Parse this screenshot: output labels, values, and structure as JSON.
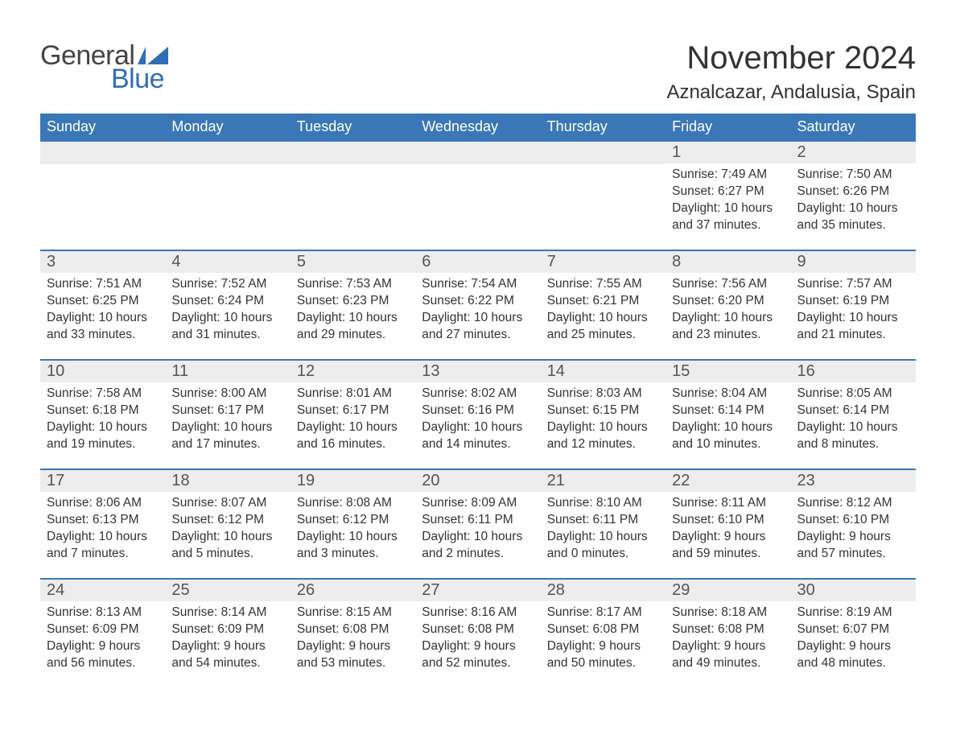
{
  "logo": {
    "general": "General",
    "blue": "Blue"
  },
  "title": "November 2024",
  "location": "Aznalcazar, Andalusia, Spain",
  "colors": {
    "header_bg": "#3a77b7",
    "header_text": "#ffffff",
    "row_divider": "#3a77b7",
    "daynum_bg": "#ededed",
    "daynum_text": "#555555",
    "body_text": "#333333",
    "logo_gray": "#444444",
    "logo_blue": "#2f6eb5",
    "page_bg": "#ffffff"
  },
  "weekdays": [
    "Sunday",
    "Monday",
    "Tuesday",
    "Wednesday",
    "Thursday",
    "Friday",
    "Saturday"
  ],
  "weeks": [
    [
      null,
      null,
      null,
      null,
      null,
      {
        "n": "1",
        "sunrise": "Sunrise: 7:49 AM",
        "sunset": "Sunset: 6:27 PM",
        "d1": "Daylight: 10 hours",
        "d2": "and 37 minutes."
      },
      {
        "n": "2",
        "sunrise": "Sunrise: 7:50 AM",
        "sunset": "Sunset: 6:26 PM",
        "d1": "Daylight: 10 hours",
        "d2": "and 35 minutes."
      }
    ],
    [
      {
        "n": "3",
        "sunrise": "Sunrise: 7:51 AM",
        "sunset": "Sunset: 6:25 PM",
        "d1": "Daylight: 10 hours",
        "d2": "and 33 minutes."
      },
      {
        "n": "4",
        "sunrise": "Sunrise: 7:52 AM",
        "sunset": "Sunset: 6:24 PM",
        "d1": "Daylight: 10 hours",
        "d2": "and 31 minutes."
      },
      {
        "n": "5",
        "sunrise": "Sunrise: 7:53 AM",
        "sunset": "Sunset: 6:23 PM",
        "d1": "Daylight: 10 hours",
        "d2": "and 29 minutes."
      },
      {
        "n": "6",
        "sunrise": "Sunrise: 7:54 AM",
        "sunset": "Sunset: 6:22 PM",
        "d1": "Daylight: 10 hours",
        "d2": "and 27 minutes."
      },
      {
        "n": "7",
        "sunrise": "Sunrise: 7:55 AM",
        "sunset": "Sunset: 6:21 PM",
        "d1": "Daylight: 10 hours",
        "d2": "and 25 minutes."
      },
      {
        "n": "8",
        "sunrise": "Sunrise: 7:56 AM",
        "sunset": "Sunset: 6:20 PM",
        "d1": "Daylight: 10 hours",
        "d2": "and 23 minutes."
      },
      {
        "n": "9",
        "sunrise": "Sunrise: 7:57 AM",
        "sunset": "Sunset: 6:19 PM",
        "d1": "Daylight: 10 hours",
        "d2": "and 21 minutes."
      }
    ],
    [
      {
        "n": "10",
        "sunrise": "Sunrise: 7:58 AM",
        "sunset": "Sunset: 6:18 PM",
        "d1": "Daylight: 10 hours",
        "d2": "and 19 minutes."
      },
      {
        "n": "11",
        "sunrise": "Sunrise: 8:00 AM",
        "sunset": "Sunset: 6:17 PM",
        "d1": "Daylight: 10 hours",
        "d2": "and 17 minutes."
      },
      {
        "n": "12",
        "sunrise": "Sunrise: 8:01 AM",
        "sunset": "Sunset: 6:17 PM",
        "d1": "Daylight: 10 hours",
        "d2": "and 16 minutes."
      },
      {
        "n": "13",
        "sunrise": "Sunrise: 8:02 AM",
        "sunset": "Sunset: 6:16 PM",
        "d1": "Daylight: 10 hours",
        "d2": "and 14 minutes."
      },
      {
        "n": "14",
        "sunrise": "Sunrise: 8:03 AM",
        "sunset": "Sunset: 6:15 PM",
        "d1": "Daylight: 10 hours",
        "d2": "and 12 minutes."
      },
      {
        "n": "15",
        "sunrise": "Sunrise: 8:04 AM",
        "sunset": "Sunset: 6:14 PM",
        "d1": "Daylight: 10 hours",
        "d2": "and 10 minutes."
      },
      {
        "n": "16",
        "sunrise": "Sunrise: 8:05 AM",
        "sunset": "Sunset: 6:14 PM",
        "d1": "Daylight: 10 hours",
        "d2": "and 8 minutes."
      }
    ],
    [
      {
        "n": "17",
        "sunrise": "Sunrise: 8:06 AM",
        "sunset": "Sunset: 6:13 PM",
        "d1": "Daylight: 10 hours",
        "d2": "and 7 minutes."
      },
      {
        "n": "18",
        "sunrise": "Sunrise: 8:07 AM",
        "sunset": "Sunset: 6:12 PM",
        "d1": "Daylight: 10 hours",
        "d2": "and 5 minutes."
      },
      {
        "n": "19",
        "sunrise": "Sunrise: 8:08 AM",
        "sunset": "Sunset: 6:12 PM",
        "d1": "Daylight: 10 hours",
        "d2": "and 3 minutes."
      },
      {
        "n": "20",
        "sunrise": "Sunrise: 8:09 AM",
        "sunset": "Sunset: 6:11 PM",
        "d1": "Daylight: 10 hours",
        "d2": "and 2 minutes."
      },
      {
        "n": "21",
        "sunrise": "Sunrise: 8:10 AM",
        "sunset": "Sunset: 6:11 PM",
        "d1": "Daylight: 10 hours",
        "d2": "and 0 minutes."
      },
      {
        "n": "22",
        "sunrise": "Sunrise: 8:11 AM",
        "sunset": "Sunset: 6:10 PM",
        "d1": "Daylight: 9 hours",
        "d2": "and 59 minutes."
      },
      {
        "n": "23",
        "sunrise": "Sunrise: 8:12 AM",
        "sunset": "Sunset: 6:10 PM",
        "d1": "Daylight: 9 hours",
        "d2": "and 57 minutes."
      }
    ],
    [
      {
        "n": "24",
        "sunrise": "Sunrise: 8:13 AM",
        "sunset": "Sunset: 6:09 PM",
        "d1": "Daylight: 9 hours",
        "d2": "and 56 minutes."
      },
      {
        "n": "25",
        "sunrise": "Sunrise: 8:14 AM",
        "sunset": "Sunset: 6:09 PM",
        "d1": "Daylight: 9 hours",
        "d2": "and 54 minutes."
      },
      {
        "n": "26",
        "sunrise": "Sunrise: 8:15 AM",
        "sunset": "Sunset: 6:08 PM",
        "d1": "Daylight: 9 hours",
        "d2": "and 53 minutes."
      },
      {
        "n": "27",
        "sunrise": "Sunrise: 8:16 AM",
        "sunset": "Sunset: 6:08 PM",
        "d1": "Daylight: 9 hours",
        "d2": "and 52 minutes."
      },
      {
        "n": "28",
        "sunrise": "Sunrise: 8:17 AM",
        "sunset": "Sunset: 6:08 PM",
        "d1": "Daylight: 9 hours",
        "d2": "and 50 minutes."
      },
      {
        "n": "29",
        "sunrise": "Sunrise: 8:18 AM",
        "sunset": "Sunset: 6:08 PM",
        "d1": "Daylight: 9 hours",
        "d2": "and 49 minutes."
      },
      {
        "n": "30",
        "sunrise": "Sunrise: 8:19 AM",
        "sunset": "Sunset: 6:07 PM",
        "d1": "Daylight: 9 hours",
        "d2": "and 48 minutes."
      }
    ]
  ]
}
